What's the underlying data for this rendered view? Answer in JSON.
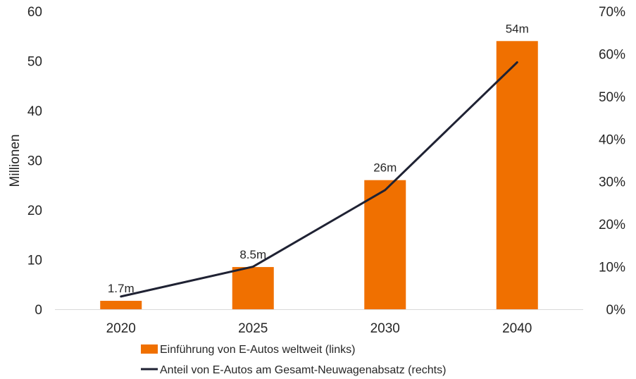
{
  "chart_data": {
    "type": "bar+line",
    "categories": [
      "2020",
      "2025",
      "2030",
      "2040"
    ],
    "series": [
      {
        "name": "Einführung von E-Autos weltweit (links)",
        "type": "bar",
        "axis": "left",
        "values": [
          1.7,
          8.5,
          26,
          54
        ],
        "labels": [
          "1.7m",
          "8.5m",
          "26m",
          "54m"
        ],
        "color": "#F07000"
      },
      {
        "name": "Anteil von E-Autos am Gesamt-Neuwagenabsatz (rechts)",
        "type": "line",
        "axis": "right",
        "values": [
          3,
          10,
          28,
          58
        ],
        "color": "#1F2233"
      }
    ],
    "ylabel": "Millionen",
    "ylim": [
      0,
      60
    ],
    "y_ticks": [
      "0",
      "10",
      "20",
      "30",
      "40",
      "50",
      "60"
    ],
    "y2lim": [
      0,
      70
    ],
    "y2_ticks": [
      "0%",
      "10%",
      "20%",
      "30%",
      "40%",
      "50%",
      "60%",
      "70%"
    ],
    "grid": false,
    "legend_position": "bottom"
  }
}
